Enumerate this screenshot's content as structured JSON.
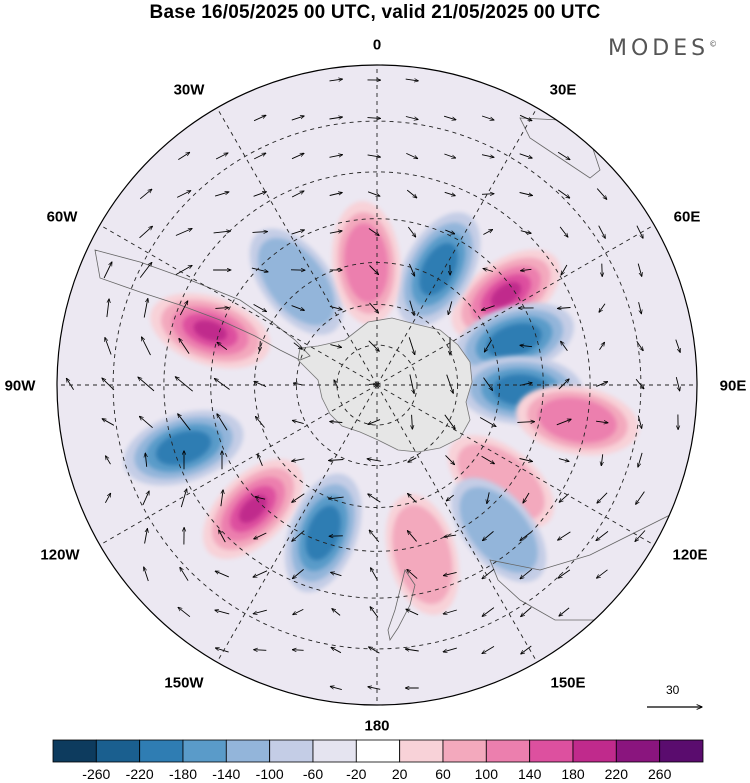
{
  "title": "Base 16/05/2025 00 UTC, valid 21/05/2025 00 UTC",
  "brand": "MODES",
  "brand_mark": "©",
  "longitude_labels": {
    "n0": "0",
    "n30e": "30E",
    "n60e": "60E",
    "n90e": "90E",
    "n120e": "120E",
    "n150e": "150E",
    "n180": "180",
    "n150w": "150W",
    "n120w": "120W",
    "n90w": "90W",
    "n60w": "60W",
    "n30w": "30W"
  },
  "vector_scale": {
    "label": "30"
  },
  "colorbar": {
    "colors": [
      "#0d3b5e",
      "#1a5f8f",
      "#2f7db3",
      "#5a9bc9",
      "#93b5da",
      "#c4cde6",
      "#e5e4f0",
      "#ffffff",
      "#f8d2d8",
      "#f3a9bd",
      "#ec7fae",
      "#dd509f",
      "#c02a8c",
      "#8a157e",
      "#5a0c6e"
    ],
    "ticks": [
      "-260",
      "-220",
      "-180",
      "-140",
      "-100",
      "-60",
      "-20",
      "20",
      "60",
      "100",
      "140",
      "180",
      "220",
      "260"
    ]
  },
  "map_data": {
    "projection": "south polar stereographic",
    "anomaly_centres": [
      {
        "lon": 55,
        "lat": -52,
        "sign": "positive",
        "strength": 0.95
      },
      {
        "lon": 28,
        "lat": -58,
        "sign": "negative",
        "strength": 0.75
      },
      {
        "lon": 72,
        "lat": -55,
        "sign": "negative",
        "strength": 0.75
      },
      {
        "lon": 92,
        "lat": -55,
        "sign": "negative",
        "strength": 0.8
      },
      {
        "lon": 100,
        "lat": -42,
        "sign": "positive",
        "strength": 0.55
      },
      {
        "lon": 128,
        "lat": -52,
        "sign": "positive",
        "strength": 0.45
      },
      {
        "lon": 140,
        "lat": -45,
        "sign": "negative",
        "strength": 0.35
      },
      {
        "lon": 165,
        "lat": -48,
        "sign": "positive",
        "strength": 0.4
      },
      {
        "lon": -160,
        "lat": -52,
        "sign": "negative",
        "strength": 0.85
      },
      {
        "lon": -135,
        "lat": -48,
        "sign": "positive",
        "strength": 0.95
      },
      {
        "lon": -108,
        "lat": -42,
        "sign": "negative",
        "strength": 0.75
      },
      {
        "lon": -72,
        "lat": -48,
        "sign": "positive",
        "strength": 0.9
      },
      {
        "lon": -38,
        "lat": -58,
        "sign": "negative",
        "strength": 0.45
      },
      {
        "lon": -5,
        "lat": -60,
        "sign": "positive",
        "strength": 0.55
      }
    ]
  }
}
